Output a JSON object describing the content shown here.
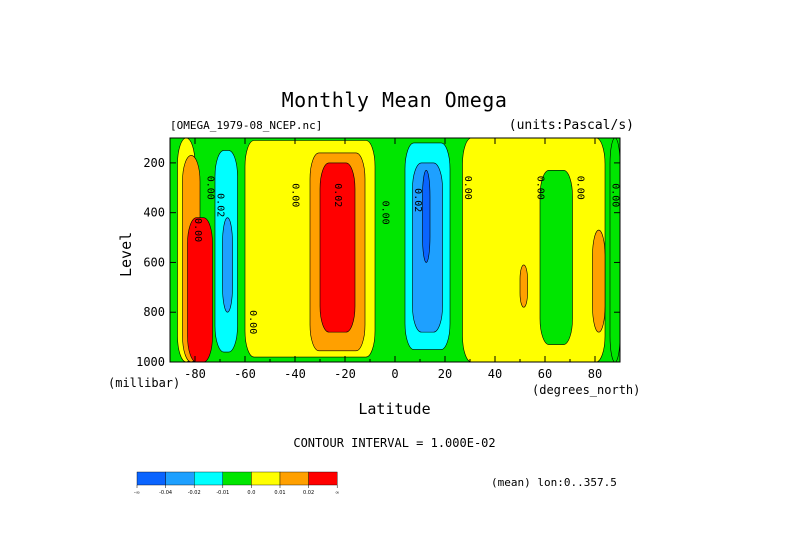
{
  "chart_data": {
    "type": "heatmap",
    "title": "Monthly Mean Omega",
    "dataset": "[OMEGA_1979-08_NCEP.nc]",
    "units": "(units:Pascal/s)",
    "xlabel": "Latitude",
    "x_unit": "(degrees_north)",
    "ylabel": "Level",
    "y_unit": "(millibar)",
    "xlim": [
      -90,
      90
    ],
    "ylim": [
      1000,
      100
    ],
    "x_ticks": [
      -80,
      -60,
      -40,
      -20,
      0,
      20,
      40,
      60,
      80
    ],
    "y_ticks": [
      200,
      400,
      600,
      800,
      1000
    ],
    "contour_interval_text": "CONTOUR INTERVAL = 1.000E-02",
    "mean_note": "(mean) lon:0..357.5",
    "colorbar": {
      "bins": [
        {
          "color": "#0a64ff"
        },
        {
          "color": "#1ea0ff"
        },
        {
          "color": "#00ffff"
        },
        {
          "color": "#00e600"
        },
        {
          "color": "#ffff00"
        },
        {
          "color": "#ffa000"
        },
        {
          "color": "#ff0000"
        }
      ],
      "labels": [
        "-∞",
        "-0.04",
        "-0.02",
        "-0.01",
        "0.0",
        "0.01",
        "0.02",
        "∞"
      ]
    },
    "regions": [
      {
        "fill": "#00e600",
        "x": [
          -90,
          90
        ],
        "y": [
          1000,
          100
        ]
      },
      {
        "fill": "#ffff00",
        "x": [
          -87,
          -80
        ],
        "y": [
          1000,
          100
        ]
      },
      {
        "fill": "#ffa000",
        "x": [
          -85,
          -78
        ],
        "y": [
          1000,
          170
        ]
      },
      {
        "fill": "#ff0000",
        "x": [
          -83,
          -73
        ],
        "y": [
          1000,
          420
        ]
      },
      {
        "fill": "#00ffff",
        "x": [
          -72,
          -63
        ],
        "y": [
          960,
          150
        ]
      },
      {
        "fill": "#1ea0ff",
        "x": [
          -69,
          -65
        ],
        "y": [
          800,
          420
        ]
      },
      {
        "fill": "#ffff00",
        "x": [
          -60,
          -8
        ],
        "y": [
          980,
          110
        ]
      },
      {
        "fill": "#ffa000",
        "x": [
          -34,
          -12
        ],
        "y": [
          955,
          160
        ]
      },
      {
        "fill": "#ff0000",
        "x": [
          -30,
          -16
        ],
        "y": [
          880,
          200
        ]
      },
      {
        "fill": "#00ffff",
        "x": [
          4,
          22
        ],
        "y": [
          950,
          120
        ]
      },
      {
        "fill": "#1ea0ff",
        "x": [
          7,
          19
        ],
        "y": [
          880,
          200
        ]
      },
      {
        "fill": "#0a64ff",
        "x": [
          11,
          14
        ],
        "y": [
          600,
          230
        ]
      },
      {
        "fill": "#ffff00",
        "x": [
          27,
          84
        ],
        "y": [
          1000,
          100
        ]
      },
      {
        "fill": "#00e600",
        "x": [
          58,
          71
        ],
        "y": [
          930,
          230
        ]
      },
      {
        "fill": "#ffa000",
        "x": [
          50,
          53
        ],
        "y": [
          780,
          610
        ]
      },
      {
        "fill": "#ffa000",
        "x": [
          79,
          84
        ],
        "y": [
          880,
          470
        ]
      },
      {
        "fill": "#00e600",
        "x": [
          86,
          90
        ],
        "y": [
          1000,
          100
        ]
      }
    ],
    "contour_labels": [
      {
        "text": "0.00",
        "x": -80,
        "y": 470
      },
      {
        "text": "0.02",
        "x": -71,
        "y": 370
      },
      {
        "text": "0.00",
        "x": -75,
        "y": 300
      },
      {
        "text": "0.00",
        "x": -58,
        "y": 840
      },
      {
        "text": "0.00",
        "x": -41,
        "y": 330
      },
      {
        "text": "0.02",
        "x": -24,
        "y": 330
      },
      {
        "text": "0.00",
        "x": -5,
        "y": 400
      },
      {
        "text": "0.02",
        "x": 8,
        "y": 350
      },
      {
        "text": "0.00",
        "x": 28,
        "y": 300
      },
      {
        "text": "0.00",
        "x": 57,
        "y": 300
      },
      {
        "text": "0.00",
        "x": 73,
        "y": 300
      },
      {
        "text": "0.00",
        "x": 87,
        "y": 330
      }
    ]
  }
}
